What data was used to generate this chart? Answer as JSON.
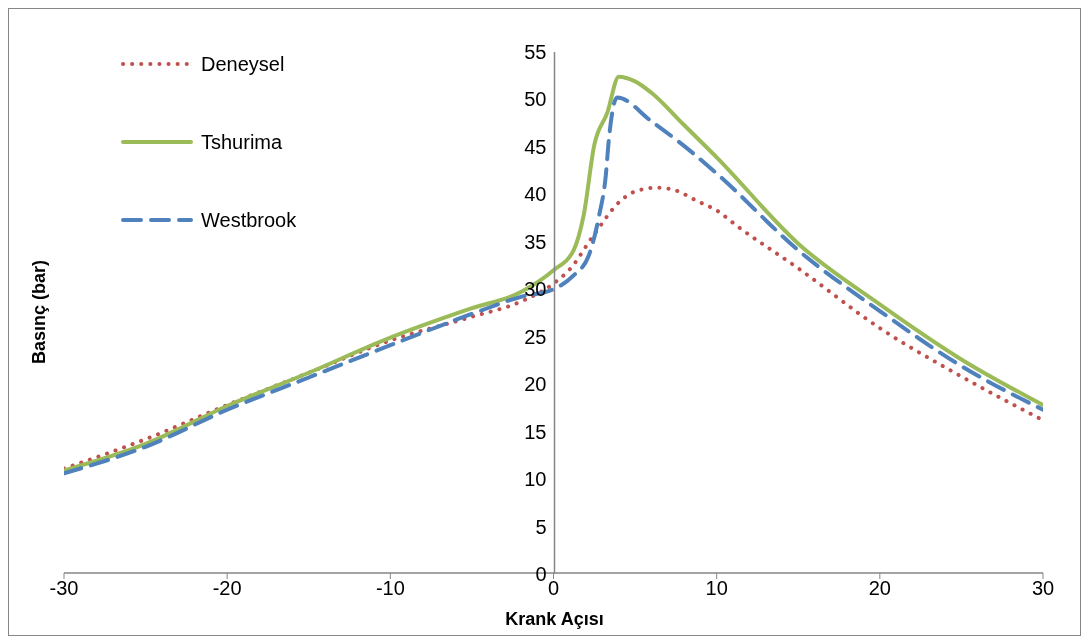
{
  "chart_data": {
    "type": "line",
    "xlabel": "Krank Açısı",
    "ylabel": "Basınç (bar)",
    "xlim": [
      -30,
      30
    ],
    "xticks": [
      -30,
      -20,
      -10,
      0,
      10,
      20,
      30
    ],
    "ylim": [
      0,
      55
    ],
    "yticks": [
      0,
      5,
      10,
      15,
      20,
      25,
      30,
      35,
      40,
      45,
      50,
      55
    ],
    "grid": false,
    "legend": "top left",
    "marker": "none",
    "series": [
      {
        "name": "Deneysel",
        "color": "#c0504d",
        "line_style": "dotted",
        "x": [
          -30,
          -25,
          -20,
          -15,
          -10,
          -5,
          -2,
          0,
          1,
          2.5,
          4.1,
          5,
          6.4,
          7.5,
          8.8,
          10,
          11.3,
          15,
          20,
          25,
          30
        ],
        "values": [
          11,
          14.1,
          17.7,
          21.1,
          24.5,
          27,
          28.6,
          30.5,
          32,
          35.7,
          39.2,
          40.2,
          40.6,
          40.3,
          39.2,
          38.2,
          36.5,
          32.1,
          25.8,
          20.7,
          16.1
        ]
      },
      {
        "name": "Tshurima",
        "color": "#9bbb59",
        "line_style": "solid",
        "x": [
          -30,
          -25,
          -20,
          -15,
          -10,
          -5,
          -2,
          0,
          1.23,
          1.85,
          2.5,
          3.3,
          4,
          5,
          6,
          8,
          10,
          15,
          20,
          25,
          30
        ],
        "values": [
          10.8,
          13.6,
          17.6,
          21.1,
          24.8,
          27.9,
          29.6,
          31.9,
          34,
          37.7,
          45.1,
          48.5,
          52.3,
          51.8,
          50.6,
          47.2,
          43.8,
          34.7,
          28.3,
          22.5,
          17.7
        ]
      },
      {
        "name": "Westbrook",
        "color": "#4f81bd",
        "line_style": "dashed",
        "x": [
          -30,
          -25,
          -20,
          -15,
          -10,
          -5,
          -2,
          0,
          1.2,
          2.15,
          2.8,
          3.2,
          3.4,
          3.9,
          6,
          8,
          10,
          15,
          20,
          25,
          30
        ],
        "values": [
          10.5,
          13.3,
          17.2,
          20.6,
          24,
          27.3,
          29.1,
          29.9,
          31.3,
          33.4,
          37.7,
          41.8,
          45.8,
          50.1,
          47.6,
          45,
          42.1,
          34,
          27.6,
          21.8,
          17.2
        ]
      }
    ]
  }
}
